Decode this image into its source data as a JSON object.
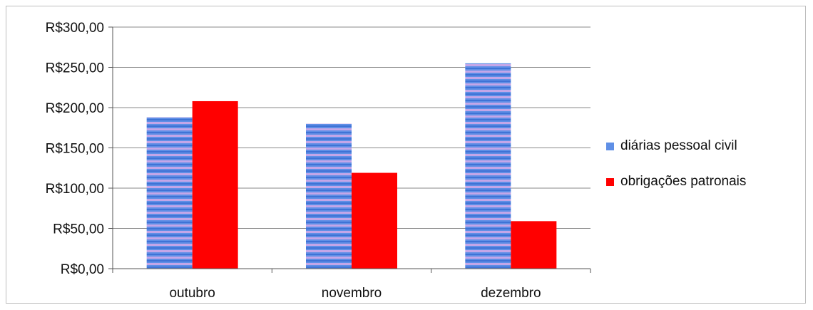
{
  "chart_data": {
    "type": "bar",
    "categories": [
      "outubro",
      "novembro",
      "dezembro"
    ],
    "series": [
      {
        "name": "diárias pessoal civil",
        "values": [
          188,
          180,
          255
        ],
        "color": "#6a8fe0"
      },
      {
        "name": "obrigações patronais",
        "values": [
          208,
          119,
          59
        ],
        "color": "#ff0000"
      }
    ],
    "ylim": [
      0,
      300
    ],
    "yticks": [
      "R$0,00",
      "R$50,00",
      "R$100,00",
      "R$150,00",
      "R$200,00",
      "R$250,00",
      "R$300,00"
    ],
    "grid": true,
    "legend_position": "right"
  }
}
